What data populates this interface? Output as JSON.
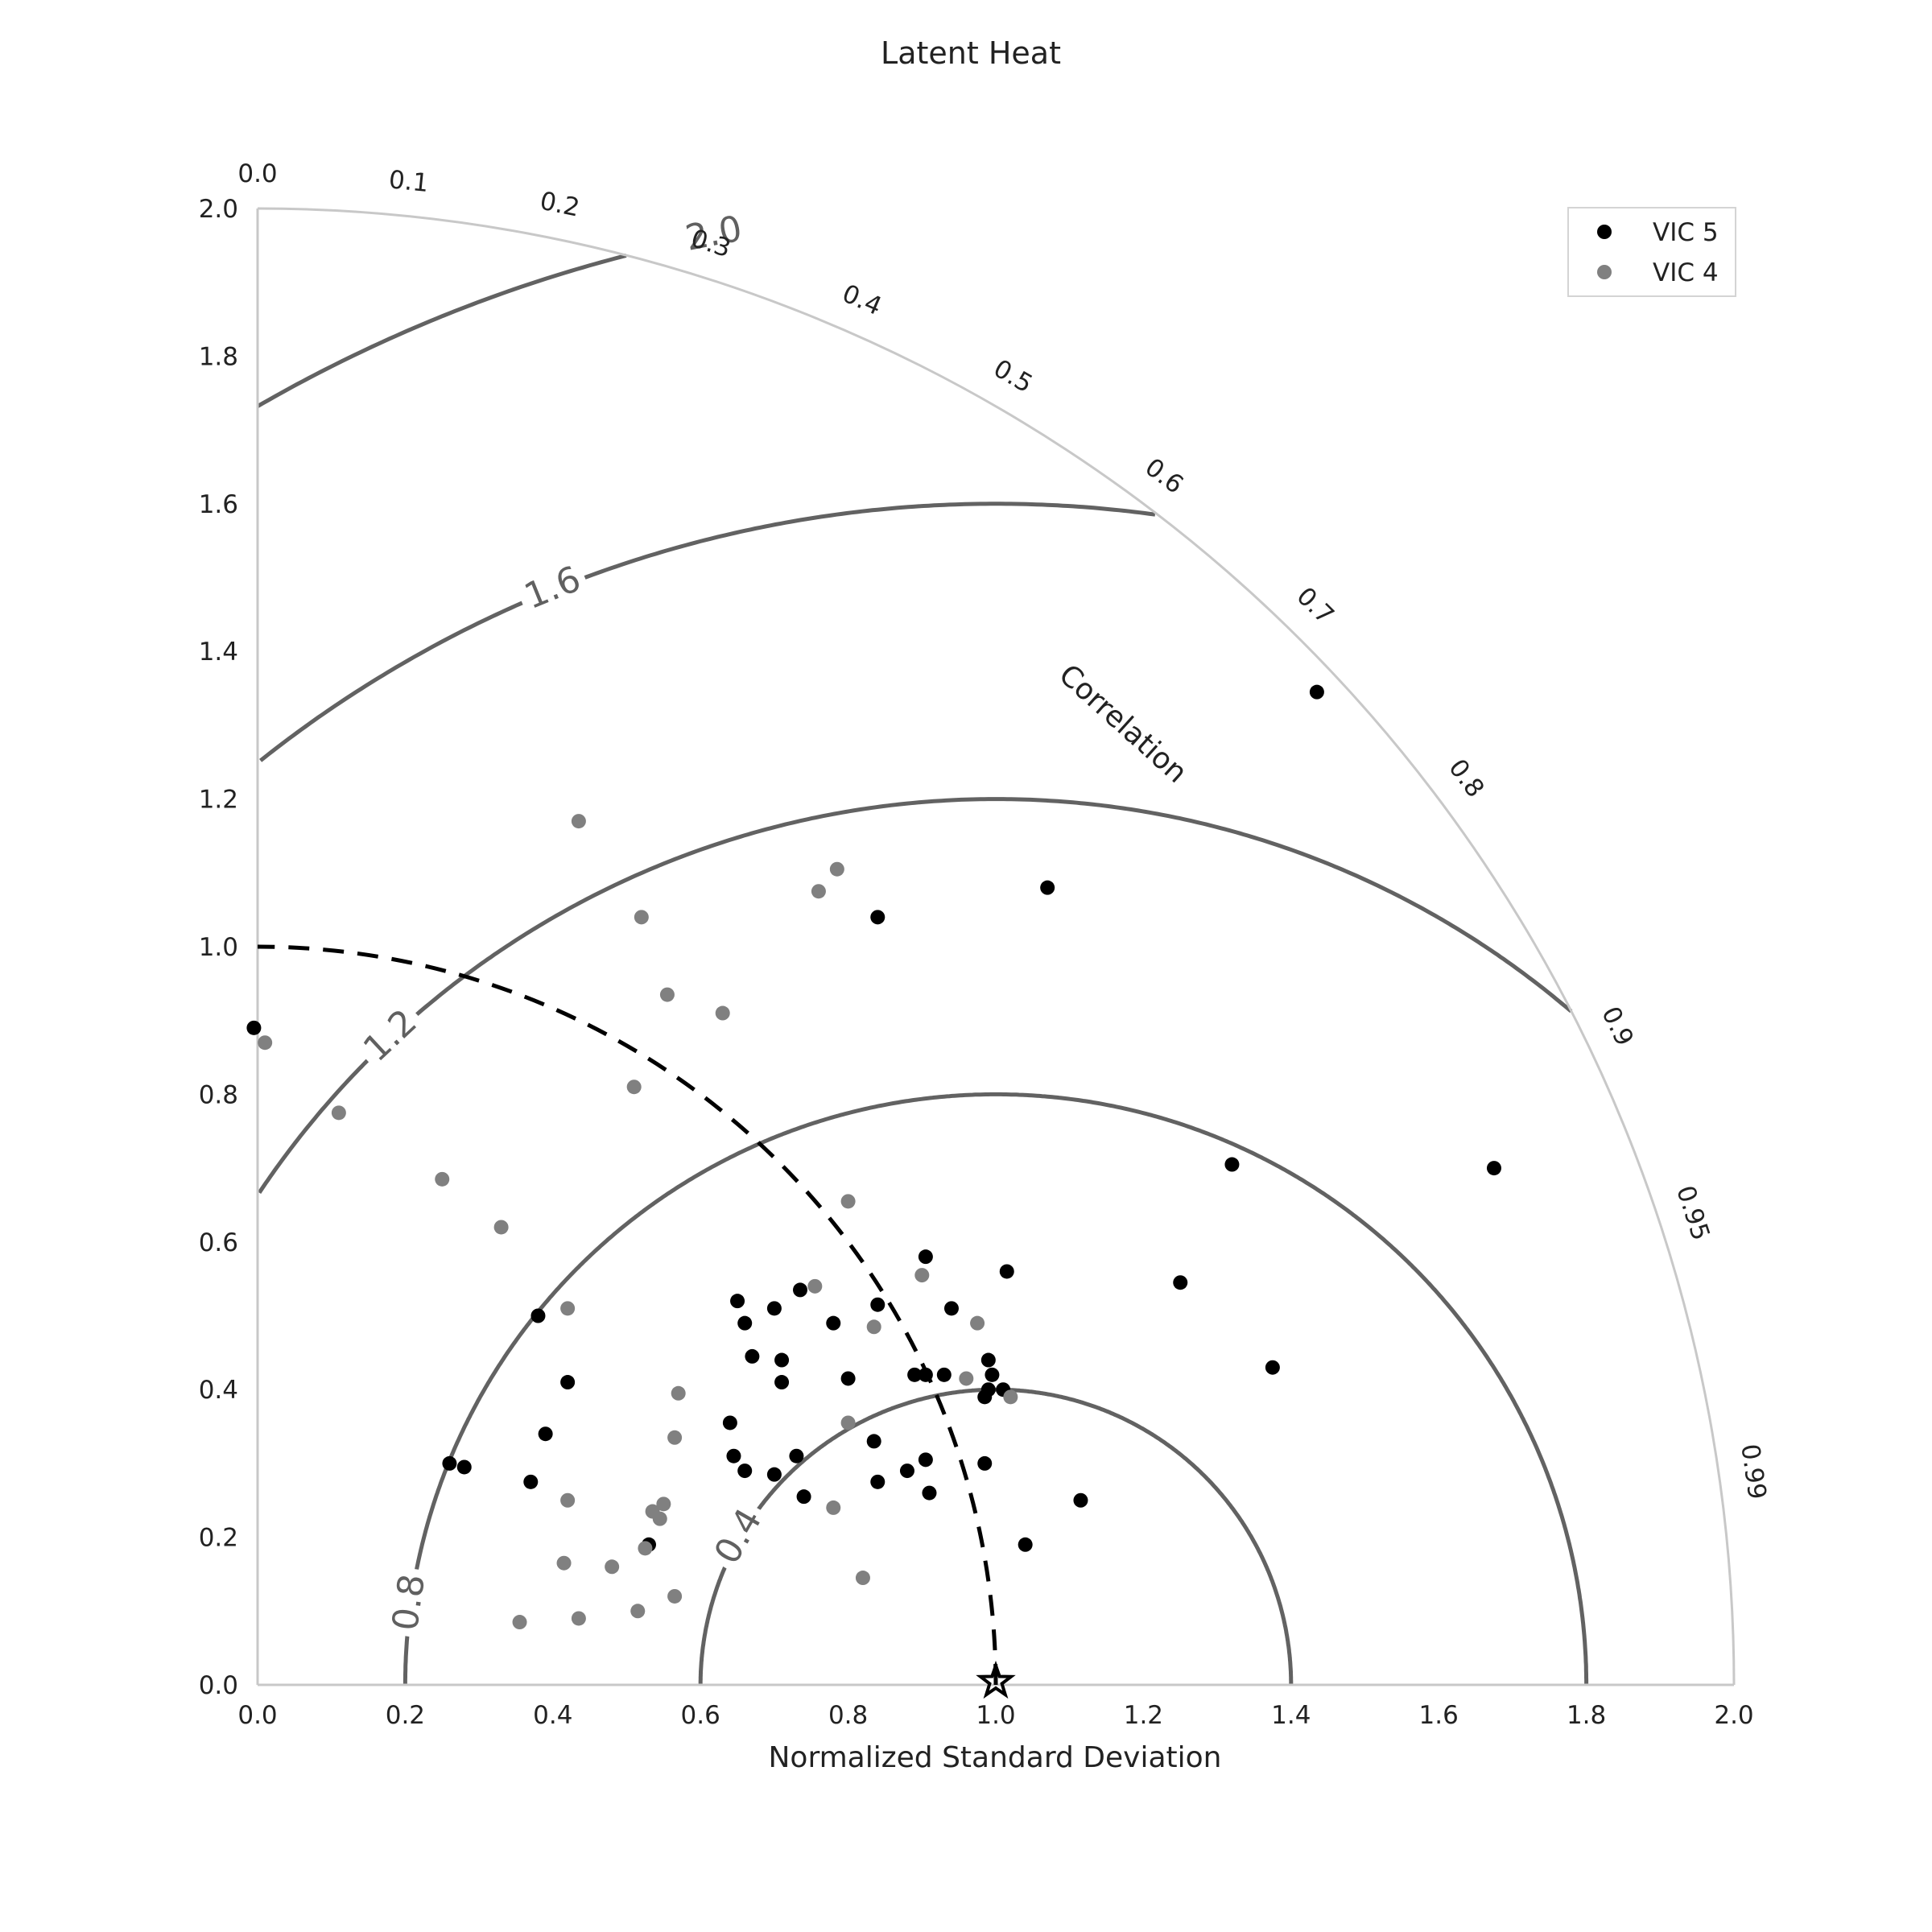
{
  "chart_data": {
    "type": "scatter",
    "subtype": "taylor-diagram",
    "title": "Latent Heat",
    "xlabel": "Normalized Standard Deviation",
    "ylabel": "",
    "angular_axis_label": "Correlation",
    "xlim": [
      0.0,
      2.0
    ],
    "ylim": [
      0.0,
      2.0
    ],
    "std_ticks": [
      "0.0",
      "0.2",
      "0.4",
      "0.6",
      "0.8",
      "1.0",
      "1.2",
      "1.4",
      "1.6",
      "1.8",
      "2.0"
    ],
    "correlation_ticks": [
      "0.0",
      "0.1",
      "0.2",
      "0.3",
      "0.4",
      "0.5",
      "0.6",
      "0.7",
      "0.8",
      "0.9",
      "0.95",
      "0.99"
    ],
    "rms_contours": [
      0.4,
      0.8,
      1.2,
      1.6,
      2.0
    ],
    "rms_contour_labels": [
      "0.4",
      "0.8",
      "1.2",
      "1.6",
      "2.0"
    ],
    "reference": {
      "std": 1.0,
      "marker": "star"
    },
    "reference_std_arc": 1.0,
    "legend_position": "top-right",
    "grid": false,
    "series": [
      {
        "name": "VIC 5",
        "color": "#000000",
        "points": [
          [
            -0.005,
            0.89
          ],
          [
            1.435,
            1.345
          ],
          [
            1.07,
            1.08
          ],
          [
            0.84,
            1.04
          ],
          [
            1.675,
            0.7
          ],
          [
            1.32,
            0.705
          ],
          [
            1.25,
            0.545
          ],
          [
            1.375,
            0.43
          ],
          [
            0.905,
            0.58
          ],
          [
            1.015,
            0.56
          ],
          [
            0.65,
            0.52
          ],
          [
            0.66,
            0.49
          ],
          [
            0.7,
            0.51
          ],
          [
            0.735,
            0.535
          ],
          [
            0.78,
            0.49
          ],
          [
            0.84,
            0.515
          ],
          [
            0.94,
            0.51
          ],
          [
            0.67,
            0.445
          ],
          [
            0.71,
            0.44
          ],
          [
            0.71,
            0.41
          ],
          [
            0.8,
            0.415
          ],
          [
            0.89,
            0.42
          ],
          [
            0.905,
            0.42
          ],
          [
            0.93,
            0.42
          ],
          [
            0.99,
            0.44
          ],
          [
            0.995,
            0.42
          ],
          [
            0.99,
            0.4
          ],
          [
            1.01,
            0.4
          ],
          [
            0.985,
            0.39
          ],
          [
            0.64,
            0.355
          ],
          [
            0.645,
            0.31
          ],
          [
            0.66,
            0.29
          ],
          [
            0.7,
            0.285
          ],
          [
            0.73,
            0.31
          ],
          [
            0.74,
            0.255
          ],
          [
            0.835,
            0.33
          ],
          [
            0.84,
            0.275
          ],
          [
            0.88,
            0.29
          ],
          [
            0.905,
            0.305
          ],
          [
            0.91,
            0.26
          ],
          [
            0.985,
            0.3
          ],
          [
            1.115,
            0.25
          ],
          [
            1.04,
            0.19
          ],
          [
            0.38,
            0.5
          ],
          [
            0.42,
            0.41
          ],
          [
            0.39,
            0.34
          ],
          [
            0.37,
            0.275
          ],
          [
            0.26,
            0.3
          ],
          [
            0.28,
            0.295
          ],
          [
            0.53,
            0.19
          ]
        ]
      },
      {
        "name": "VIC 4",
        "color": "#808080",
        "points": [
          [
            0.435,
            1.17
          ],
          [
            0.785,
            1.105
          ],
          [
            0.76,
            1.075
          ],
          [
            0.52,
            1.04
          ],
          [
            0.555,
            0.935
          ],
          [
            0.63,
            0.91
          ],
          [
            0.01,
            0.87
          ],
          [
            0.51,
            0.81
          ],
          [
            0.11,
            0.775
          ],
          [
            0.25,
            0.685
          ],
          [
            0.33,
            0.62
          ],
          [
            0.8,
            0.655
          ],
          [
            0.9,
            0.555
          ],
          [
            0.755,
            0.54
          ],
          [
            0.42,
            0.51
          ],
          [
            0.975,
            0.49
          ],
          [
            0.835,
            0.485
          ],
          [
            0.96,
            0.415
          ],
          [
            1.02,
            0.39
          ],
          [
            0.57,
            0.395
          ],
          [
            0.8,
            0.355
          ],
          [
            0.565,
            0.335
          ],
          [
            0.42,
            0.25
          ],
          [
            0.55,
            0.245
          ],
          [
            0.535,
            0.235
          ],
          [
            0.545,
            0.225
          ],
          [
            0.78,
            0.24
          ],
          [
            0.525,
            0.185
          ],
          [
            0.415,
            0.165
          ],
          [
            0.48,
            0.16
          ],
          [
            0.82,
            0.145
          ],
          [
            0.565,
            0.12
          ],
          [
            0.515,
            0.1
          ],
          [
            0.435,
            0.09
          ],
          [
            0.355,
            0.085
          ]
        ]
      }
    ]
  }
}
